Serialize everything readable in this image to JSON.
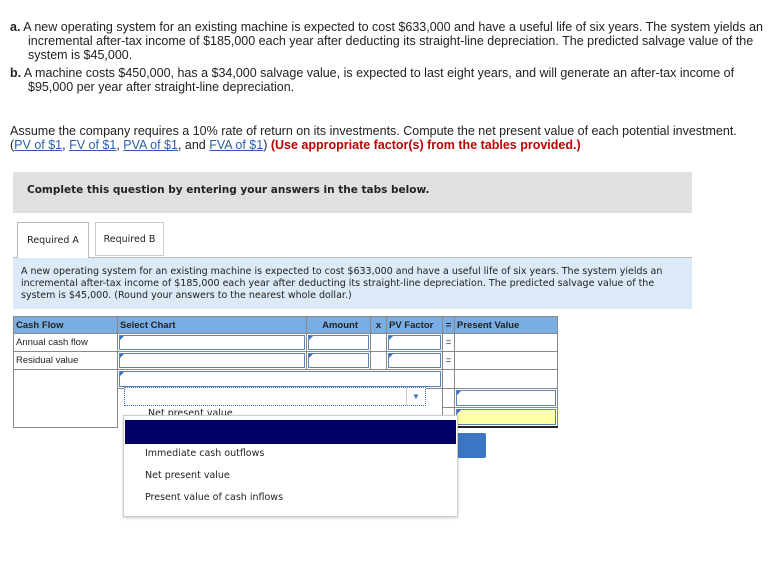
{
  "problem": {
    "a_label": "a.",
    "a_text": "A new operating system for an existing machine is expected to cost $633,000 and have a useful life of six years. The system yields an incremental after-tax income of $185,000 each year after deducting its straight-line depreciation. The predicted salvage value of the system is $45,000.",
    "b_label": "b.",
    "b_text": "A machine costs $450,000, has a $34,000 salvage value, is expected to last eight years, and will generate an after-tax income of $95,000 per year after straight-line depreciation.",
    "assume": "Assume the company requires a 10% rate of return on its investments. Compute the net present value of each potential investment.",
    "links": [
      "PV of $1",
      "FV of $1",
      "PVA of $1",
      "FVA of $1"
    ],
    "sep1": ", ",
    "sep_and": ", and ",
    "open": "(",
    "close": ")",
    "note": "(Use appropriate factor(s) from the tables provided.)"
  },
  "instruction_bar": "Complete this question by entering your answers in the tabs below.",
  "tabs": [
    {
      "label": "Required A",
      "active": true
    },
    {
      "label": "Required B",
      "active": false
    }
  ],
  "instructions": "A new operating system for an existing machine is expected to cost $633,000 and have a useful life of six years. The system yields an incremental after-tax income of $185,000 each year after deducting its straight-line depreciation. The predicted salvage value of the system is $45,000. (Round your answers to the nearest whole dollar.)",
  "table": {
    "headers": [
      "Cash Flow",
      "Select Chart",
      "Amount",
      "x",
      "PV Factor",
      "=",
      "Present Value"
    ],
    "rows": [
      {
        "label": "Annual cash flow",
        "eq": "="
      },
      {
        "label": "Residual value",
        "eq": "="
      }
    ]
  },
  "dropdown": {
    "peek": "Net present value",
    "options": [
      "Immediate cash outflows",
      "Net present value",
      "Present value of cash inflows"
    ]
  },
  "colors": {
    "header": "#7aaee3",
    "highlight": "#000066",
    "total_cell": "#ffffa8",
    "button": "#3a76c4"
  }
}
